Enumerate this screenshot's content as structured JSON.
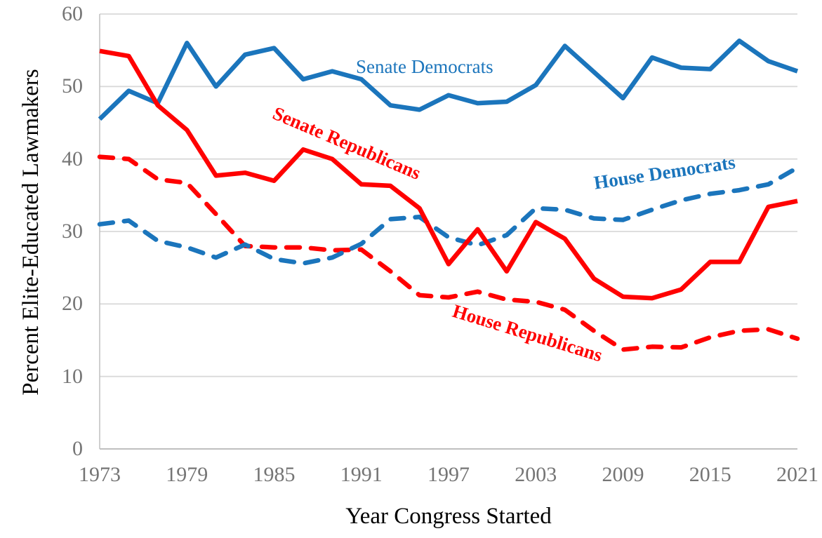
{
  "axis": {
    "x_title": "Year Congress Started",
    "y_title": "Percent Elite-Educated Lawmakers"
  },
  "labels": {
    "senate_democrats": "Senate Democrats",
    "senate_republicans": "Senate Republicans",
    "house_democrats": "House Democrats",
    "house_republicans": "House Republicans"
  },
  "colors": {
    "democrat_blue": "#1B75BC",
    "republican_red": "#FF0000",
    "gridline": "#D9D9D9",
    "axis_line": "#BFBFBF",
    "tick_text": "#757575",
    "title_text": "#000000"
  },
  "chart_data": {
    "type": "line",
    "title": "",
    "xlabel": "Year Congress Started",
    "ylabel": "Percent Elite-Educated Lawmakers",
    "x": [
      1973,
      1975,
      1977,
      1979,
      1981,
      1983,
      1985,
      1987,
      1989,
      1991,
      1993,
      1995,
      1997,
      1999,
      2001,
      2003,
      2005,
      2007,
      2009,
      2011,
      2013,
      2015,
      2017,
      2019,
      2021
    ],
    "x_tick_labels": [
      "1973",
      "1979",
      "1985",
      "1991",
      "1997",
      "2003",
      "2009",
      "2015",
      "2021"
    ],
    "x_tick_years": [
      1973,
      1979,
      1985,
      1991,
      1997,
      2003,
      2009,
      2015,
      2021
    ],
    "y_ticks": [
      0,
      10,
      20,
      30,
      40,
      50,
      60
    ],
    "ylim": [
      0,
      60
    ],
    "xlim": [
      1973,
      2021
    ],
    "grid": "horizontal",
    "legend_position": "inline-labels",
    "series": [
      {
        "name": "House Republicans",
        "chamber": "House",
        "party": "Republican",
        "style": "dashed",
        "color": "#FF0000",
        "values": [
          40.3,
          40.0,
          37.2,
          36.7,
          32.4,
          28.0,
          27.8,
          27.8,
          27.4,
          27.5,
          24.5,
          21.2,
          20.9,
          21.7,
          20.6,
          20.3,
          19.2,
          16.3,
          13.7,
          14.1,
          14.0,
          15.4,
          16.3,
          16.5,
          15.2
        ]
      },
      {
        "name": "House Democrats",
        "chamber": "House",
        "party": "Democrat",
        "style": "dashed",
        "color": "#1B75BC",
        "values": [
          31.0,
          31.5,
          28.7,
          27.8,
          26.4,
          28.2,
          26.2,
          25.6,
          26.4,
          28.3,
          31.7,
          32.0,
          29.2,
          28.1,
          29.5,
          33.2,
          33.0,
          31.8,
          31.6,
          33.0,
          34.3,
          35.2,
          35.7,
          36.5,
          38.8
        ]
      },
      {
        "name": "Senate Democrats",
        "chamber": "Senate",
        "party": "Democrat",
        "style": "solid",
        "color": "#1B75BC",
        "values": [
          45.5,
          49.4,
          47.7,
          56.0,
          50.0,
          54.4,
          55.3,
          51.0,
          52.1,
          51.0,
          47.4,
          46.8,
          48.8,
          47.7,
          47.9,
          50.2,
          55.6,
          52.0,
          48.4,
          54.0,
          52.6,
          52.4,
          56.3,
          53.5,
          52.1
        ]
      },
      {
        "name": "Senate Republicans",
        "chamber": "Senate",
        "party": "Republican",
        "style": "solid",
        "color": "#FF0000",
        "values": [
          54.9,
          54.2,
          47.4,
          44.0,
          37.7,
          38.1,
          37.0,
          41.3,
          40.0,
          36.5,
          36.3,
          33.2,
          25.5,
          30.3,
          24.5,
          31.3,
          29.0,
          23.5,
          21.0,
          20.8,
          22.0,
          25.8,
          25.8,
          33.4,
          34.2
        ]
      }
    ]
  }
}
